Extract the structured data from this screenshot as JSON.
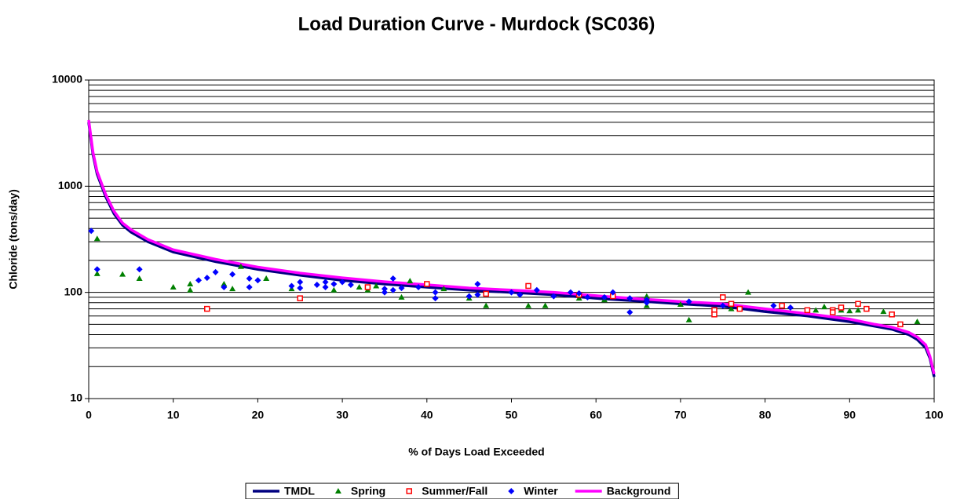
{
  "chart_data": {
    "type": "scatter",
    "title": "Load Duration Curve - Murdock (SC036)",
    "x_label": "% of Days Load Exceeded",
    "y_label": "Chloride (tons/day)",
    "xlim": [
      0,
      100
    ],
    "xticks": [
      0,
      10,
      20,
      30,
      40,
      50,
      60,
      70,
      80,
      90,
      100
    ],
    "ylim": [
      10,
      10000
    ],
    "yticks": [
      10,
      100,
      1000,
      10000
    ],
    "y_log_scale": true,
    "grid": true,
    "legend": "bottom",
    "series": [
      {
        "name": "TMDL",
        "style": "line",
        "color": "#000080",
        "x": [
          0,
          0.5,
          1,
          2,
          3,
          4,
          5,
          7,
          10,
          15,
          20,
          25,
          30,
          35,
          40,
          45,
          50,
          55,
          60,
          65,
          70,
          75,
          80,
          85,
          90,
          93,
          95,
          97,
          98,
          99,
          99.5,
          100
        ],
        "values": [
          4000,
          2000,
          1300,
          800,
          550,
          430,
          370,
          300,
          240,
          195,
          165,
          145,
          130,
          120,
          112,
          105,
          100,
          95,
          88,
          83,
          78,
          74,
          66,
          60,
          53,
          48,
          45,
          40,
          36,
          30,
          24,
          16
        ]
      },
      {
        "name": "Spring",
        "style": "marker",
        "marker": "triangle",
        "color": "#008000",
        "x": [
          1,
          1,
          4,
          6,
          10,
          12,
          12,
          16,
          17,
          18,
          21,
          24,
          29,
          32,
          33,
          34,
          37,
          38,
          42,
          45,
          47,
          52,
          54,
          58,
          61,
          66,
          66,
          70,
          71,
          76,
          78,
          86,
          87,
          89,
          90,
          91,
          94,
          98
        ],
        "values": [
          320,
          150,
          148,
          135,
          112,
          120,
          105,
          120,
          108,
          175,
          135,
          108,
          105,
          112,
          105,
          115,
          90,
          128,
          108,
          88,
          75,
          75,
          75,
          88,
          85,
          75,
          92,
          77,
          55,
          70,
          100,
          68,
          73,
          68,
          67,
          68,
          66,
          53
        ]
      },
      {
        "name": "Summer/Fall",
        "style": "marker",
        "marker": "square",
        "color": "#ff0000",
        "x": [
          14,
          25,
          33,
          40,
          47,
          52,
          58,
          62,
          74,
          74,
          75,
          76,
          77,
          82,
          85,
          88,
          88,
          89,
          91,
          92,
          95,
          96
        ],
        "values": [
          70,
          88,
          112,
          120,
          97,
          115,
          95,
          92,
          68,
          62,
          90,
          78,
          70,
          75,
          68,
          68,
          65,
          72,
          78,
          70,
          62,
          50
        ]
      },
      {
        "name": "Winter",
        "style": "marker",
        "marker": "diamond",
        "color": "#0000ff",
        "x": [
          0.3,
          1,
          6,
          13,
          14,
          15,
          16,
          17,
          19,
          19,
          20,
          24,
          25,
          25,
          27,
          28,
          28,
          29,
          30,
          31,
          35,
          35,
          36,
          36,
          37,
          39,
          41,
          41,
          45,
          46,
          46,
          50,
          51,
          53,
          55,
          57,
          58,
          59,
          61,
          62,
          64,
          64,
          66,
          66,
          71,
          75,
          81,
          83
        ],
        "values": [
          380,
          165,
          165,
          130,
          137,
          155,
          112,
          148,
          135,
          112,
          130,
          115,
          125,
          110,
          118,
          112,
          125,
          120,
          125,
          118,
          108,
          100,
          135,
          105,
          110,
          112,
          100,
          88,
          92,
          120,
          95,
          100,
          95,
          105,
          92,
          100,
          98,
          90,
          90,
          100,
          88,
          65,
          85,
          80,
          82,
          75,
          75,
          72
        ]
      },
      {
        "name": "Background",
        "style": "line",
        "color": "#ff00ff",
        "x": [
          0,
          0.5,
          1,
          2,
          3,
          4,
          5,
          7,
          10,
          15,
          20,
          25,
          30,
          35,
          40,
          45,
          50,
          55,
          60,
          65,
          70,
          75,
          80,
          85,
          90,
          93,
          95,
          97,
          98,
          99,
          99.5,
          100
        ],
        "values": [
          4200,
          2100,
          1370,
          840,
          580,
          450,
          390,
          315,
          252,
          205,
          173,
          152,
          137,
          126,
          118,
          110,
          105,
          100,
          93,
          87,
          82,
          78,
          70,
          63,
          56,
          50,
          47,
          42,
          38,
          32,
          25,
          17
        ]
      }
    ]
  }
}
